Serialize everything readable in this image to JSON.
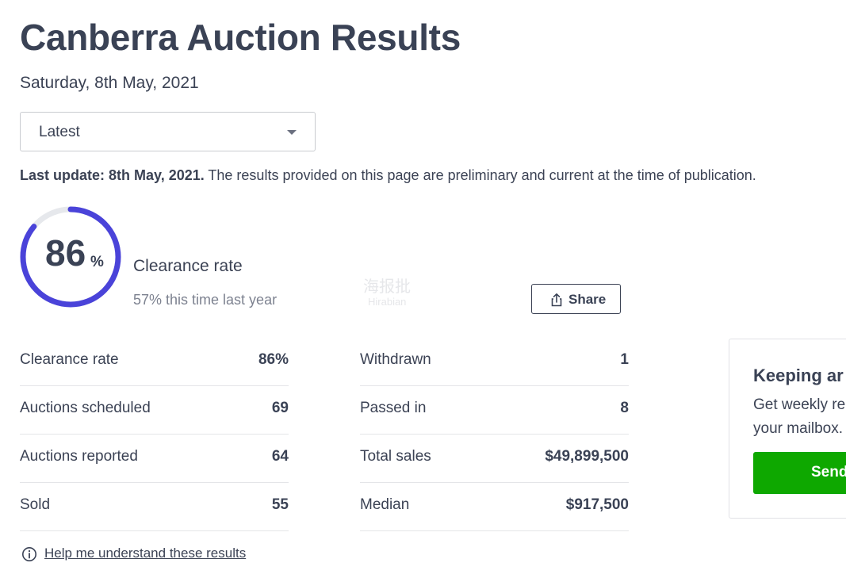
{
  "page": {
    "title": "Canberra Auction Results",
    "date": "Saturday, 8th May, 2021"
  },
  "period_select": {
    "value": "Latest"
  },
  "update": {
    "bold": "Last update: 8th May, 2021.",
    "text": " The results provided on this page are preliminary and current at the time of publication."
  },
  "clearance": {
    "value": "86",
    "value_fraction": 0.86,
    "unit": "%",
    "label": "Clearance rate",
    "last_year": "57% this time last year",
    "ring_color": "#4a43d9",
    "ring_track_color": "#e6e8ec"
  },
  "share": {
    "label": "Share",
    "icon": "share-icon"
  },
  "stats_left": [
    {
      "label": "Clearance rate",
      "value": "86%"
    },
    {
      "label": "Auctions scheduled",
      "value": "69"
    },
    {
      "label": "Auctions reported",
      "value": "64"
    },
    {
      "label": "Sold",
      "value": "55"
    }
  ],
  "stats_right": [
    {
      "label": "Withdrawn",
      "value": "1"
    },
    {
      "label": "Passed in",
      "value": "8"
    },
    {
      "label": "Total sales",
      "value": "$49,899,500"
    },
    {
      "label": "Median",
      "value": "$917,500"
    }
  ],
  "help": {
    "label": "Help me understand these results",
    "icon": "info-icon"
  },
  "newsletter": {
    "title": "Keeping ar",
    "desc_line1": "Get weekly re",
    "desc_line2": "your mailbox.",
    "button_label": "Send",
    "button_color": "#0ea800"
  },
  "watermark": {
    "line1": "海报批",
    "line2": "Hirabian",
    "lettering": "Hirabian"
  }
}
